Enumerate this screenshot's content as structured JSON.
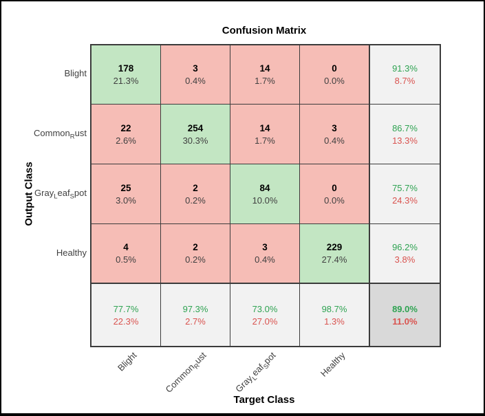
{
  "chart_data": {
    "type": "heatmap",
    "title": "Confusion Matrix",
    "xlabel": "Target Class",
    "ylabel": "Output Class",
    "classes": [
      "Blight",
      "Common_Rust",
      "Gray_Leaf_Spot",
      "Healthy"
    ],
    "matrix": [
      [
        178,
        3,
        14,
        0
      ],
      [
        22,
        254,
        14,
        3
      ],
      [
        25,
        2,
        84,
        0
      ],
      [
        4,
        2,
        3,
        229
      ]
    ],
    "matrix_percent": [
      [
        "21.3%",
        "0.4%",
        "1.7%",
        "0.0%"
      ],
      [
        "2.6%",
        "30.3%",
        "1.7%",
        "0.4%"
      ],
      [
        "3.0%",
        "0.2%",
        "10.0%",
        "0.0%"
      ],
      [
        "0.5%",
        "0.2%",
        "0.4%",
        "27.4%"
      ]
    ],
    "row_summary": [
      {
        "positive": "91.3%",
        "negative": "8.7%"
      },
      {
        "positive": "86.7%",
        "negative": "13.3%"
      },
      {
        "positive": "75.7%",
        "negative": "24.3%"
      },
      {
        "positive": "96.2%",
        "negative": "3.8%"
      }
    ],
    "col_summary": [
      {
        "positive": "77.7%",
        "negative": "22.3%"
      },
      {
        "positive": "97.3%",
        "negative": "2.7%"
      },
      {
        "positive": "73.0%",
        "negative": "27.0%"
      },
      {
        "positive": "98.7%",
        "negative": "1.3%"
      }
    ],
    "overall": {
      "positive": "89.0%",
      "negative": "11.0%"
    },
    "colors": {
      "diagonal_cell": "#c3e6c3",
      "off_diagonal_cell": "#f6bdb6",
      "summary_cell": "#f2f2f2",
      "overall_cell": "#d9d9d9",
      "positive_text": "#2fa352",
      "negative_text": "#d9534f",
      "grid_line": "#3b3b3b",
      "count_text": "#000000",
      "percent_text": "#404040",
      "axis_label_text": "#404040"
    }
  }
}
